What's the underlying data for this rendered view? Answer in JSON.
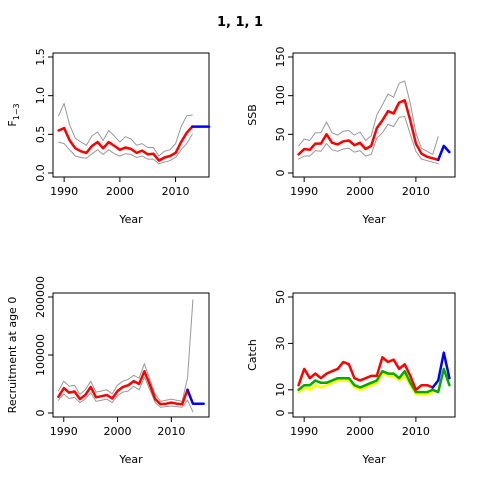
{
  "title": "1, 1, 1",
  "chart_data": [
    {
      "type": "line",
      "ylabel_main": "F",
      "ylabel_sub": "1−3",
      "xlabel": "Year",
      "xlim": [
        1988,
        2016
      ],
      "ylim": [
        0,
        1.5
      ],
      "xticks": [
        "1990",
        "2000",
        "2010"
      ],
      "yticks": [
        "0.0",
        "0.5",
        "1.0",
        "1.5"
      ],
      "series": [
        {
          "color": "#999999",
          "x": [
            1989,
            1990,
            1991,
            1992,
            1993,
            1994,
            1995,
            1996,
            1997,
            1998,
            1999,
            2000,
            2001,
            2002,
            2003,
            2004,
            2005,
            2006,
            2007,
            2008,
            2009,
            2010,
            2011,
            2012,
            2013
          ],
          "values": [
            0.74,
            0.9,
            0.62,
            0.45,
            0.4,
            0.36,
            0.48,
            0.53,
            0.42,
            0.55,
            0.48,
            0.4,
            0.47,
            0.44,
            0.36,
            0.38,
            0.33,
            0.33,
            0.22,
            0.28,
            0.3,
            0.38,
            0.6,
            0.74,
            0.75
          ]
        },
        {
          "color": "#999999",
          "x": [
            1989,
            1990,
            1991,
            1992,
            1993,
            1994,
            1995,
            1996,
            1997,
            1998,
            1999,
            2000,
            2001,
            2002,
            2003,
            2004,
            2005,
            2006,
            2007,
            2008,
            2009,
            2010,
            2011,
            2012,
            2013
          ],
          "values": [
            0.4,
            0.38,
            0.3,
            0.22,
            0.2,
            0.19,
            0.25,
            0.3,
            0.24,
            0.3,
            0.25,
            0.22,
            0.25,
            0.24,
            0.2,
            0.22,
            0.18,
            0.18,
            0.12,
            0.14,
            0.16,
            0.2,
            0.3,
            0.38,
            0.5
          ]
        },
        {
          "color": "#ff0000",
          "x": [
            1989,
            1990,
            1991,
            1992,
            1993,
            1994,
            1995,
            1996,
            1997,
            1998,
            1999,
            2000,
            2001,
            2002,
            2003,
            2004,
            2005,
            2006,
            2007,
            2008,
            2009,
            2010,
            2011,
            2012,
            2013
          ],
          "values": [
            0.55,
            0.58,
            0.42,
            0.32,
            0.28,
            0.26,
            0.35,
            0.4,
            0.32,
            0.4,
            0.35,
            0.3,
            0.33,
            0.31,
            0.26,
            0.29,
            0.24,
            0.25,
            0.16,
            0.2,
            0.22,
            0.26,
            0.4,
            0.52,
            0.6
          ]
        },
        {
          "color": "#0000ff",
          "x": [
            2013,
            2014,
            2015,
            2016
          ],
          "values": [
            0.6,
            0.6,
            0.6,
            0.6
          ]
        }
      ]
    },
    {
      "type": "line",
      "ylabel": "SSB",
      "xlabel": "Year",
      "xlim": [
        1988,
        2017
      ],
      "ylim": [
        0,
        150
      ],
      "xticks": [
        "1990",
        "2000",
        "2010"
      ],
      "yticks": [
        "0",
        "50",
        "100",
        "150"
      ],
      "series": [
        {
          "color": "#999999",
          "x": [
            1989,
            1990,
            1991,
            1992,
            1993,
            1994,
            1995,
            1996,
            1997,
            1998,
            1999,
            2000,
            2001,
            2002,
            2003,
            2004,
            2005,
            2006,
            2007,
            2008,
            2009,
            2010,
            2011,
            2012,
            2013,
            2014
          ],
          "values": [
            35,
            44,
            42,
            52,
            52,
            66,
            52,
            49,
            54,
            55,
            49,
            53,
            42,
            48,
            75,
            88,
            102,
            98,
            116,
            119,
            90,
            52,
            32,
            28,
            24,
            47
          ]
        },
        {
          "color": "#999999",
          "x": [
            1989,
            1990,
            1991,
            1992,
            1993,
            1994,
            1995,
            1996,
            1997,
            1998,
            1999,
            2000,
            2001,
            2002,
            2003,
            2004,
            2005,
            2006,
            2007,
            2008,
            2009,
            2010,
            2011,
            2012,
            2013,
            2014
          ],
          "values": [
            18,
            22,
            22,
            29,
            28,
            38,
            30,
            28,
            31,
            32,
            27,
            29,
            22,
            24,
            45,
            52,
            63,
            60,
            72,
            73,
            50,
            28,
            18,
            16,
            14,
            12
          ]
        },
        {
          "color": "#ff0000",
          "x": [
            1989,
            1990,
            1991,
            1992,
            1993,
            1994,
            1995,
            1996,
            1997,
            1998,
            1999,
            2000,
            2001,
            2002,
            2003,
            2004,
            2005,
            2006,
            2007,
            2008,
            2009,
            2010,
            2011,
            2012,
            2013,
            2014
          ],
          "values": [
            24,
            31,
            30,
            38,
            38,
            50,
            39,
            37,
            41,
            42,
            36,
            39,
            31,
            35,
            58,
            68,
            80,
            77,
            91,
            94,
            68,
            38,
            25,
            21,
            19,
            17
          ]
        },
        {
          "color": "#0000ff",
          "x": [
            2014,
            2015,
            2016
          ],
          "values": [
            17,
            35,
            27
          ]
        }
      ]
    },
    {
      "type": "line",
      "ylabel": "Recruitment at age 0",
      "xlabel": "Year",
      "xlim": [
        1988,
        2017
      ],
      "ylim": [
        0,
        200000
      ],
      "xticks": [
        "1990",
        "2000",
        "2010"
      ],
      "yticks": [
        "0",
        "100000",
        "200000"
      ],
      "series": [
        {
          "color": "#999999",
          "x": [
            1989,
            1990,
            1991,
            1992,
            1993,
            1994,
            1995,
            1996,
            1997,
            1998,
            1999,
            2000,
            2001,
            2002,
            2003,
            2004,
            2005,
            2006,
            2007,
            2008,
            2009,
            2010,
            2011,
            2012,
            2013,
            2014
          ],
          "values": [
            38000,
            55000,
            46000,
            48000,
            32000,
            40000,
            55000,
            36000,
            38000,
            40000,
            33000,
            48000,
            55000,
            58000,
            65000,
            60000,
            85000,
            58000,
            32000,
            20000,
            22000,
            24000,
            22000,
            20000,
            60000,
            195000
          ]
        },
        {
          "color": "#999999",
          "x": [
            1989,
            1990,
            1991,
            1992,
            1993,
            1994,
            1995,
            1996,
            1997,
            1998,
            1999,
            2000,
            2001,
            2002,
            2003,
            2004,
            2005,
            2006,
            2007,
            2008,
            2009,
            2010,
            2011,
            2012,
            2013,
            2014
          ],
          "values": [
            22000,
            33000,
            25000,
            27000,
            18000,
            24000,
            35000,
            20000,
            22000,
            24000,
            18000,
            30000,
            36000,
            38000,
            46000,
            40000,
            62000,
            40000,
            18000,
            10000,
            11000,
            12000,
            11000,
            10000,
            22000,
            2000
          ]
        },
        {
          "color": "#ff0000",
          "x": [
            1989,
            1990,
            1991,
            1992,
            1993,
            1994,
            1995,
            1996,
            1997,
            1998,
            1999,
            2000,
            2001,
            2002,
            2003,
            2004,
            2005,
            2006,
            2007,
            2008,
            2009,
            2010,
            2011,
            2012,
            2013
          ],
          "values": [
            28000,
            43000,
            35000,
            37000,
            24000,
            31000,
            45000,
            27000,
            29000,
            31000,
            25000,
            38000,
            45000,
            48000,
            55000,
            50000,
            72000,
            49000,
            24000,
            15000,
            16000,
            18000,
            16000,
            15000,
            40000
          ]
        },
        {
          "color": "#0000ff",
          "x": [
            2013,
            2014,
            2015,
            2016
          ],
          "values": [
            40000,
            16000,
            16000,
            16000
          ]
        }
      ]
    },
    {
      "type": "line",
      "ylabel": "Catch",
      "xlabel": "Year",
      "xlim": [
        1988,
        2017
      ],
      "ylim": [
        0,
        50
      ],
      "xticks": [
        "1990",
        "2000",
        "2010"
      ],
      "yticks": [
        "0",
        "10",
        "30",
        "50"
      ],
      "series": [
        {
          "color": "#ffff00",
          "x": [
            1989,
            1990,
            1991,
            1992,
            1993,
            1994,
            1995,
            1996,
            1997,
            1998,
            1999,
            2000,
            2001,
            2002,
            2003,
            2004,
            2005,
            2006,
            2007,
            2008,
            2009,
            2010,
            2011,
            2012,
            2013
          ],
          "values": [
            9,
            11,
            10,
            12,
            11,
            12,
            13,
            14,
            14,
            14,
            11,
            10,
            11,
            12,
            13,
            17,
            16,
            16,
            14,
            16,
            12,
            8,
            8,
            8,
            9
          ]
        },
        {
          "color": "#00aa00",
          "x": [
            1989,
            1990,
            1991,
            1992,
            1993,
            1994,
            1995,
            1996,
            1997,
            1998,
            1999,
            2000,
            2001,
            2002,
            2003,
            2004,
            2005,
            2006,
            2007,
            2008,
            2009,
            2010,
            2011,
            2012,
            2013,
            2014,
            2015,
            2016
          ],
          "values": [
            10,
            12,
            12,
            14,
            13,
            13,
            14,
            15,
            15,
            15,
            12,
            11,
            12,
            13,
            14,
            18,
            17,
            17,
            15,
            18,
            13,
            9,
            9,
            9,
            10,
            9,
            19,
            12
          ]
        },
        {
          "color": "#ff0000",
          "x": [
            1989,
            1990,
            1991,
            1992,
            1993,
            1994,
            1995,
            1996,
            1997,
            1998,
            1999,
            2000,
            2001,
            2002,
            2003,
            2004,
            2005,
            2006,
            2007,
            2008,
            2009,
            2010,
            2011,
            2012,
            2013
          ],
          "values": [
            12,
            19,
            15,
            17,
            15,
            17,
            18,
            19,
            22,
            21,
            15,
            14,
            15,
            16,
            16,
            24,
            22,
            23,
            19,
            21,
            16,
            10,
            12,
            12,
            11
          ]
        },
        {
          "color": "#0000ff",
          "x": [
            2013,
            2014,
            2015,
            2016
          ],
          "values": [
            11,
            14,
            26,
            15
          ]
        }
      ]
    }
  ]
}
